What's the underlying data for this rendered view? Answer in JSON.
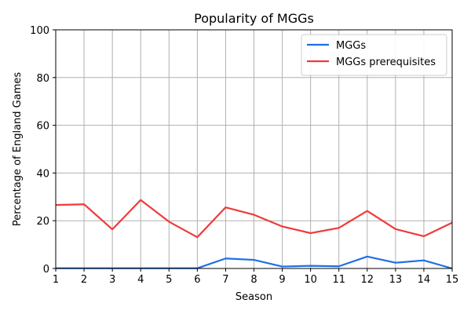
{
  "chart_data": {
    "type": "line",
    "title": "Popularity of MGGs",
    "xlabel": "Season",
    "ylabel": "Percentage of England Games",
    "x": [
      1,
      2,
      3,
      4,
      5,
      6,
      7,
      8,
      9,
      10,
      11,
      12,
      13,
      14,
      15
    ],
    "xlim": [
      1,
      15
    ],
    "ylim": [
      0,
      100
    ],
    "yticks": [
      0,
      20,
      40,
      60,
      80,
      100
    ],
    "grid": true,
    "legend_position": "top-right",
    "series": [
      {
        "name": "MGGs",
        "color": "#1f6fe6",
        "values": [
          0.1,
          0.1,
          0.1,
          0.1,
          0.1,
          0.1,
          4.2,
          3.6,
          0.8,
          1.1,
          0.9,
          5.0,
          2.4,
          3.4,
          0.0
        ]
      },
      {
        "name": "MGGs prerequisites",
        "color": "#f03a3a",
        "values": [
          26.6,
          26.9,
          16.4,
          28.7,
          19.6,
          13.1,
          25.6,
          22.5,
          17.6,
          14.8,
          17.0,
          24.1,
          16.5,
          13.5,
          19.2
        ]
      }
    ]
  }
}
